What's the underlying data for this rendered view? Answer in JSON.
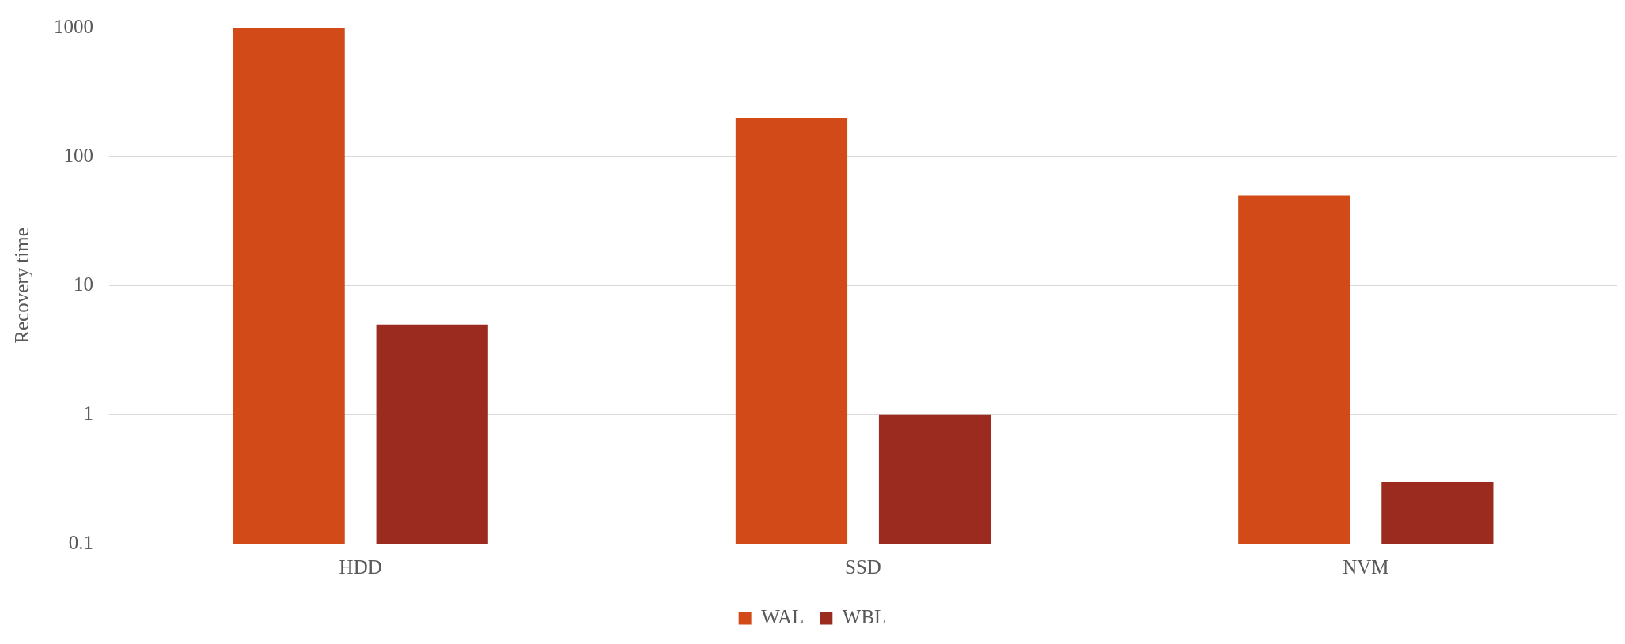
{
  "chart_data": {
    "type": "bar",
    "ylabel": "Recovery time",
    "categories": [
      "HDD",
      "SSD",
      "NVM"
    ],
    "series": [
      {
        "name": "WAL",
        "color": "#d24a17",
        "values": [
          1000,
          200,
          50
        ]
      },
      {
        "name": "WBL",
        "color": "#9b2b1f",
        "values": [
          5,
          1,
          0.3
        ]
      }
    ],
    "log": true,
    "ylim": [
      0.1,
      1000
    ],
    "yticks": [
      0.1,
      1,
      10,
      100,
      1000
    ],
    "grid": "y",
    "legend": "bottom"
  }
}
